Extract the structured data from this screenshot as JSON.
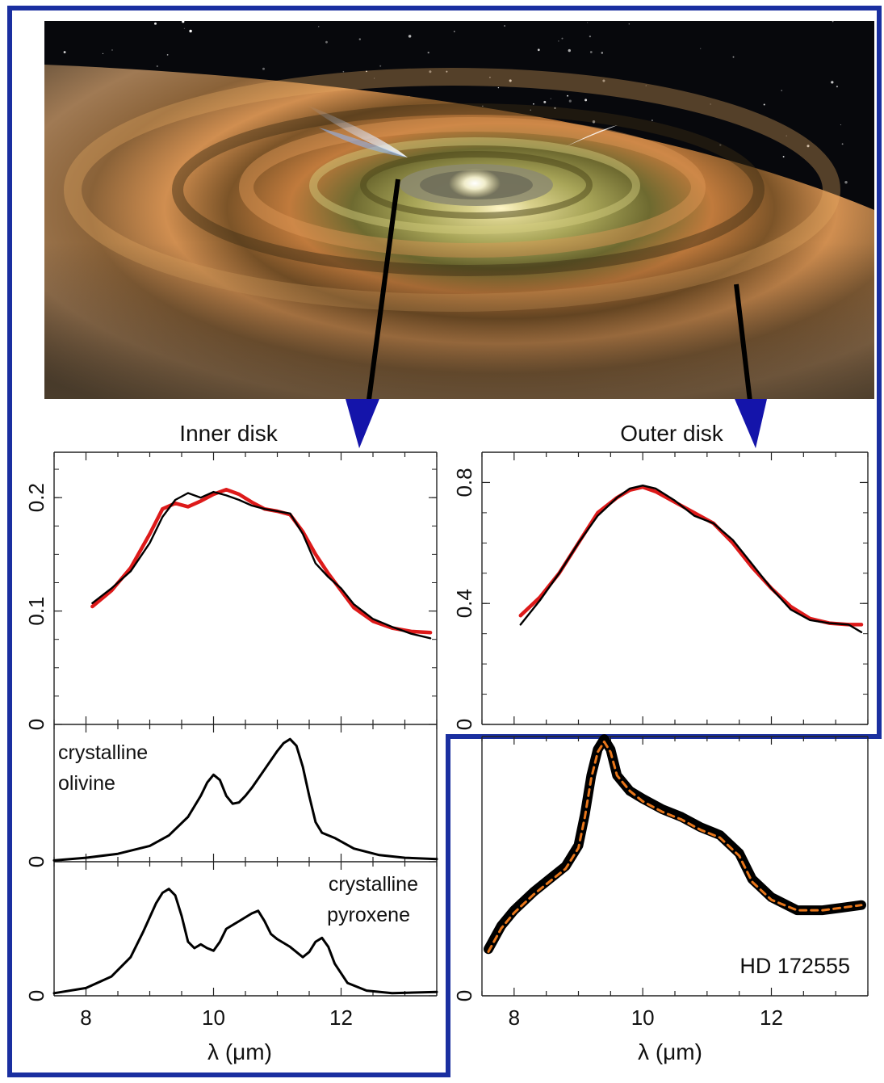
{
  "labels": {
    "inner_title": "Inner disk",
    "outer_title": "Outer disk",
    "olivine_line1": "crystalline",
    "olivine_line2": "olivine",
    "pyroxene_line1": "crystalline",
    "pyroxene_line2": "pyroxene",
    "star_name": "HD 172555",
    "xlabel_left": "λ (μm)",
    "xlabel_right": "λ (μm)"
  },
  "colors": {
    "frame": "#1a2fa0",
    "model": "#dd1a1a",
    "data": "#000000",
    "arrow": "#1414aa",
    "dashed_model": "#e8761a"
  },
  "chart_data": [
    {
      "id": "inner",
      "type": "line",
      "title": "Inner disk",
      "xlim": [
        7.5,
        13.5
      ],
      "ylim": [
        0,
        0.24
      ],
      "xticks": [
        8,
        10,
        12
      ],
      "yticks": [
        0,
        0.1,
        0.2
      ],
      "ytick_labels": [
        "0",
        "0.1",
        "0.2"
      ],
      "series": [
        {
          "name": "model",
          "color": "#dd1a1a",
          "x": [
            8.1,
            8.4,
            8.7,
            9.0,
            9.2,
            9.4,
            9.6,
            9.8,
            10.0,
            10.2,
            10.4,
            10.6,
            10.8,
            11.0,
            11.2,
            11.4,
            11.6,
            11.8,
            12.0,
            12.2,
            12.5,
            12.8,
            13.1,
            13.4
          ],
          "y": [
            0.104,
            0.118,
            0.138,
            0.168,
            0.19,
            0.195,
            0.192,
            0.197,
            0.203,
            0.207,
            0.203,
            0.196,
            0.19,
            0.188,
            0.185,
            0.17,
            0.15,
            0.133,
            0.118,
            0.103,
            0.091,
            0.085,
            0.082,
            0.081
          ]
        },
        {
          "name": "observed",
          "color": "#000000",
          "x": [
            8.1,
            8.4,
            8.7,
            9.0,
            9.2,
            9.4,
            9.6,
            9.8,
            10.0,
            10.2,
            10.4,
            10.6,
            10.8,
            11.0,
            11.2,
            11.4,
            11.6,
            11.8,
            12.0,
            12.2,
            12.5,
            12.8,
            13.1,
            13.4
          ],
          "y": [
            0.107,
            0.12,
            0.135,
            0.16,
            0.183,
            0.198,
            0.204,
            0.2,
            0.205,
            0.202,
            0.198,
            0.193,
            0.19,
            0.188,
            0.186,
            0.168,
            0.142,
            0.13,
            0.12,
            0.106,
            0.093,
            0.086,
            0.08,
            0.076
          ]
        }
      ]
    },
    {
      "id": "olivine",
      "type": "line",
      "title": "crystalline olivine",
      "xlim": [
        7.5,
        13.5
      ],
      "ylim": [
        0,
        1
      ],
      "xticks": [
        8,
        10,
        12
      ],
      "yticks": [
        0
      ],
      "ytick_labels": [
        "0"
      ],
      "series": [
        {
          "name": "olivine",
          "color": "#000000",
          "x": [
            7.5,
            8.0,
            8.5,
            9.0,
            9.3,
            9.6,
            9.8,
            9.9,
            10.0,
            10.1,
            10.2,
            10.3,
            10.4,
            10.5,
            10.6,
            10.8,
            11.0,
            11.1,
            11.2,
            11.3,
            11.4,
            11.5,
            11.6,
            11.7,
            11.9,
            12.2,
            12.6,
            13.0,
            13.5
          ],
          "y": [
            0.01,
            0.03,
            0.06,
            0.12,
            0.2,
            0.34,
            0.5,
            0.6,
            0.66,
            0.62,
            0.5,
            0.44,
            0.45,
            0.5,
            0.56,
            0.7,
            0.84,
            0.9,
            0.93,
            0.88,
            0.72,
            0.5,
            0.3,
            0.22,
            0.18,
            0.1,
            0.05,
            0.03,
            0.02
          ]
        }
      ]
    },
    {
      "id": "pyroxene",
      "type": "line",
      "title": "crystalline pyroxene",
      "xlim": [
        7.5,
        13.5
      ],
      "ylim": [
        0,
        1
      ],
      "xticks": [
        8,
        10,
        12
      ],
      "yticks": [
        0
      ],
      "ytick_labels": [
        "0"
      ],
      "series": [
        {
          "name": "pyroxene",
          "color": "#000000",
          "x": [
            7.5,
            8.0,
            8.4,
            8.7,
            8.9,
            9.1,
            9.2,
            9.3,
            9.4,
            9.5,
            9.6,
            9.7,
            9.8,
            9.9,
            10.0,
            10.1,
            10.2,
            10.4,
            10.6,
            10.7,
            10.8,
            10.9,
            11.0,
            11.2,
            11.4,
            11.5,
            11.6,
            11.7,
            11.8,
            11.9,
            12.1,
            12.4,
            12.8,
            13.5
          ],
          "y": [
            0.02,
            0.06,
            0.15,
            0.3,
            0.5,
            0.72,
            0.8,
            0.83,
            0.78,
            0.62,
            0.42,
            0.37,
            0.4,
            0.37,
            0.35,
            0.42,
            0.52,
            0.58,
            0.64,
            0.66,
            0.58,
            0.48,
            0.44,
            0.38,
            0.3,
            0.34,
            0.42,
            0.45,
            0.38,
            0.25,
            0.1,
            0.04,
            0.02,
            0.03
          ]
        }
      ]
    },
    {
      "id": "hd172555",
      "type": "line",
      "title": "HD 172555",
      "xlim": [
        7.5,
        13.5
      ],
      "ylim": [
        0,
        1.0
      ],
      "xticks": [
        8,
        10,
        12
      ],
      "yticks": [
        0
      ],
      "ytick_labels": [
        "0"
      ],
      "series": [
        {
          "name": "observed",
          "color": "#000000",
          "x": [
            7.6,
            7.8,
            8.0,
            8.3,
            8.6,
            8.8,
            9.0,
            9.1,
            9.2,
            9.3,
            9.4,
            9.5,
            9.6,
            9.8,
            10.0,
            10.3,
            10.6,
            10.9,
            11.2,
            11.5,
            11.7,
            12.0,
            12.4,
            12.8,
            13.1,
            13.4
          ],
          "y": [
            0.18,
            0.27,
            0.33,
            0.4,
            0.46,
            0.5,
            0.58,
            0.7,
            0.85,
            0.95,
            0.99,
            0.95,
            0.85,
            0.79,
            0.76,
            0.72,
            0.69,
            0.65,
            0.62,
            0.55,
            0.45,
            0.38,
            0.33,
            0.33,
            0.34,
            0.35
          ]
        },
        {
          "name": "model",
          "color": "#e8761a",
          "dashed": true,
          "x": [
            7.6,
            7.8,
            8.0,
            8.3,
            8.6,
            8.8,
            9.0,
            9.1,
            9.2,
            9.3,
            9.4,
            9.5,
            9.6,
            9.8,
            10.0,
            10.3,
            10.6,
            10.9,
            11.2,
            11.5,
            11.7,
            12.0,
            12.4,
            12.8,
            13.1,
            13.4
          ],
          "y": [
            0.17,
            0.26,
            0.32,
            0.39,
            0.45,
            0.49,
            0.57,
            0.69,
            0.84,
            0.94,
            0.98,
            0.94,
            0.85,
            0.79,
            0.75,
            0.71,
            0.68,
            0.64,
            0.61,
            0.54,
            0.44,
            0.37,
            0.33,
            0.33,
            0.34,
            0.35
          ]
        }
      ]
    },
    {
      "id": "outer",
      "type": "line",
      "title": "Outer disk",
      "xlim": [
        7.5,
        13.5
      ],
      "ylim": [
        0,
        0.9
      ],
      "xticks": [
        8,
        10,
        12
      ],
      "yticks": [
        0,
        0.4,
        0.8
      ],
      "ytick_labels": [
        "0",
        "0.4",
        "0.8"
      ],
      "series": [
        {
          "name": "model",
          "color": "#dd1a1a",
          "x": [
            8.1,
            8.4,
            8.7,
            9.0,
            9.3,
            9.6,
            9.8,
            10.0,
            10.2,
            10.5,
            10.8,
            11.1,
            11.4,
            11.7,
            12.0,
            12.3,
            12.6,
            12.9,
            13.2,
            13.4
          ],
          "y": [
            0.36,
            0.42,
            0.5,
            0.6,
            0.7,
            0.75,
            0.775,
            0.785,
            0.77,
            0.735,
            0.7,
            0.665,
            0.6,
            0.52,
            0.45,
            0.39,
            0.35,
            0.335,
            0.33,
            0.33
          ]
        },
        {
          "name": "observed",
          "color": "#000000",
          "x": [
            8.1,
            8.4,
            8.7,
            9.0,
            9.3,
            9.6,
            9.8,
            10.0,
            10.2,
            10.5,
            10.8,
            11.1,
            11.4,
            11.7,
            12.0,
            12.3,
            12.6,
            12.9,
            13.2,
            13.4
          ],
          "y": [
            0.33,
            0.41,
            0.5,
            0.6,
            0.69,
            0.75,
            0.78,
            0.79,
            0.78,
            0.74,
            0.69,
            0.665,
            0.61,
            0.53,
            0.45,
            0.38,
            0.345,
            0.335,
            0.33,
            0.305
          ]
        }
      ]
    }
  ]
}
